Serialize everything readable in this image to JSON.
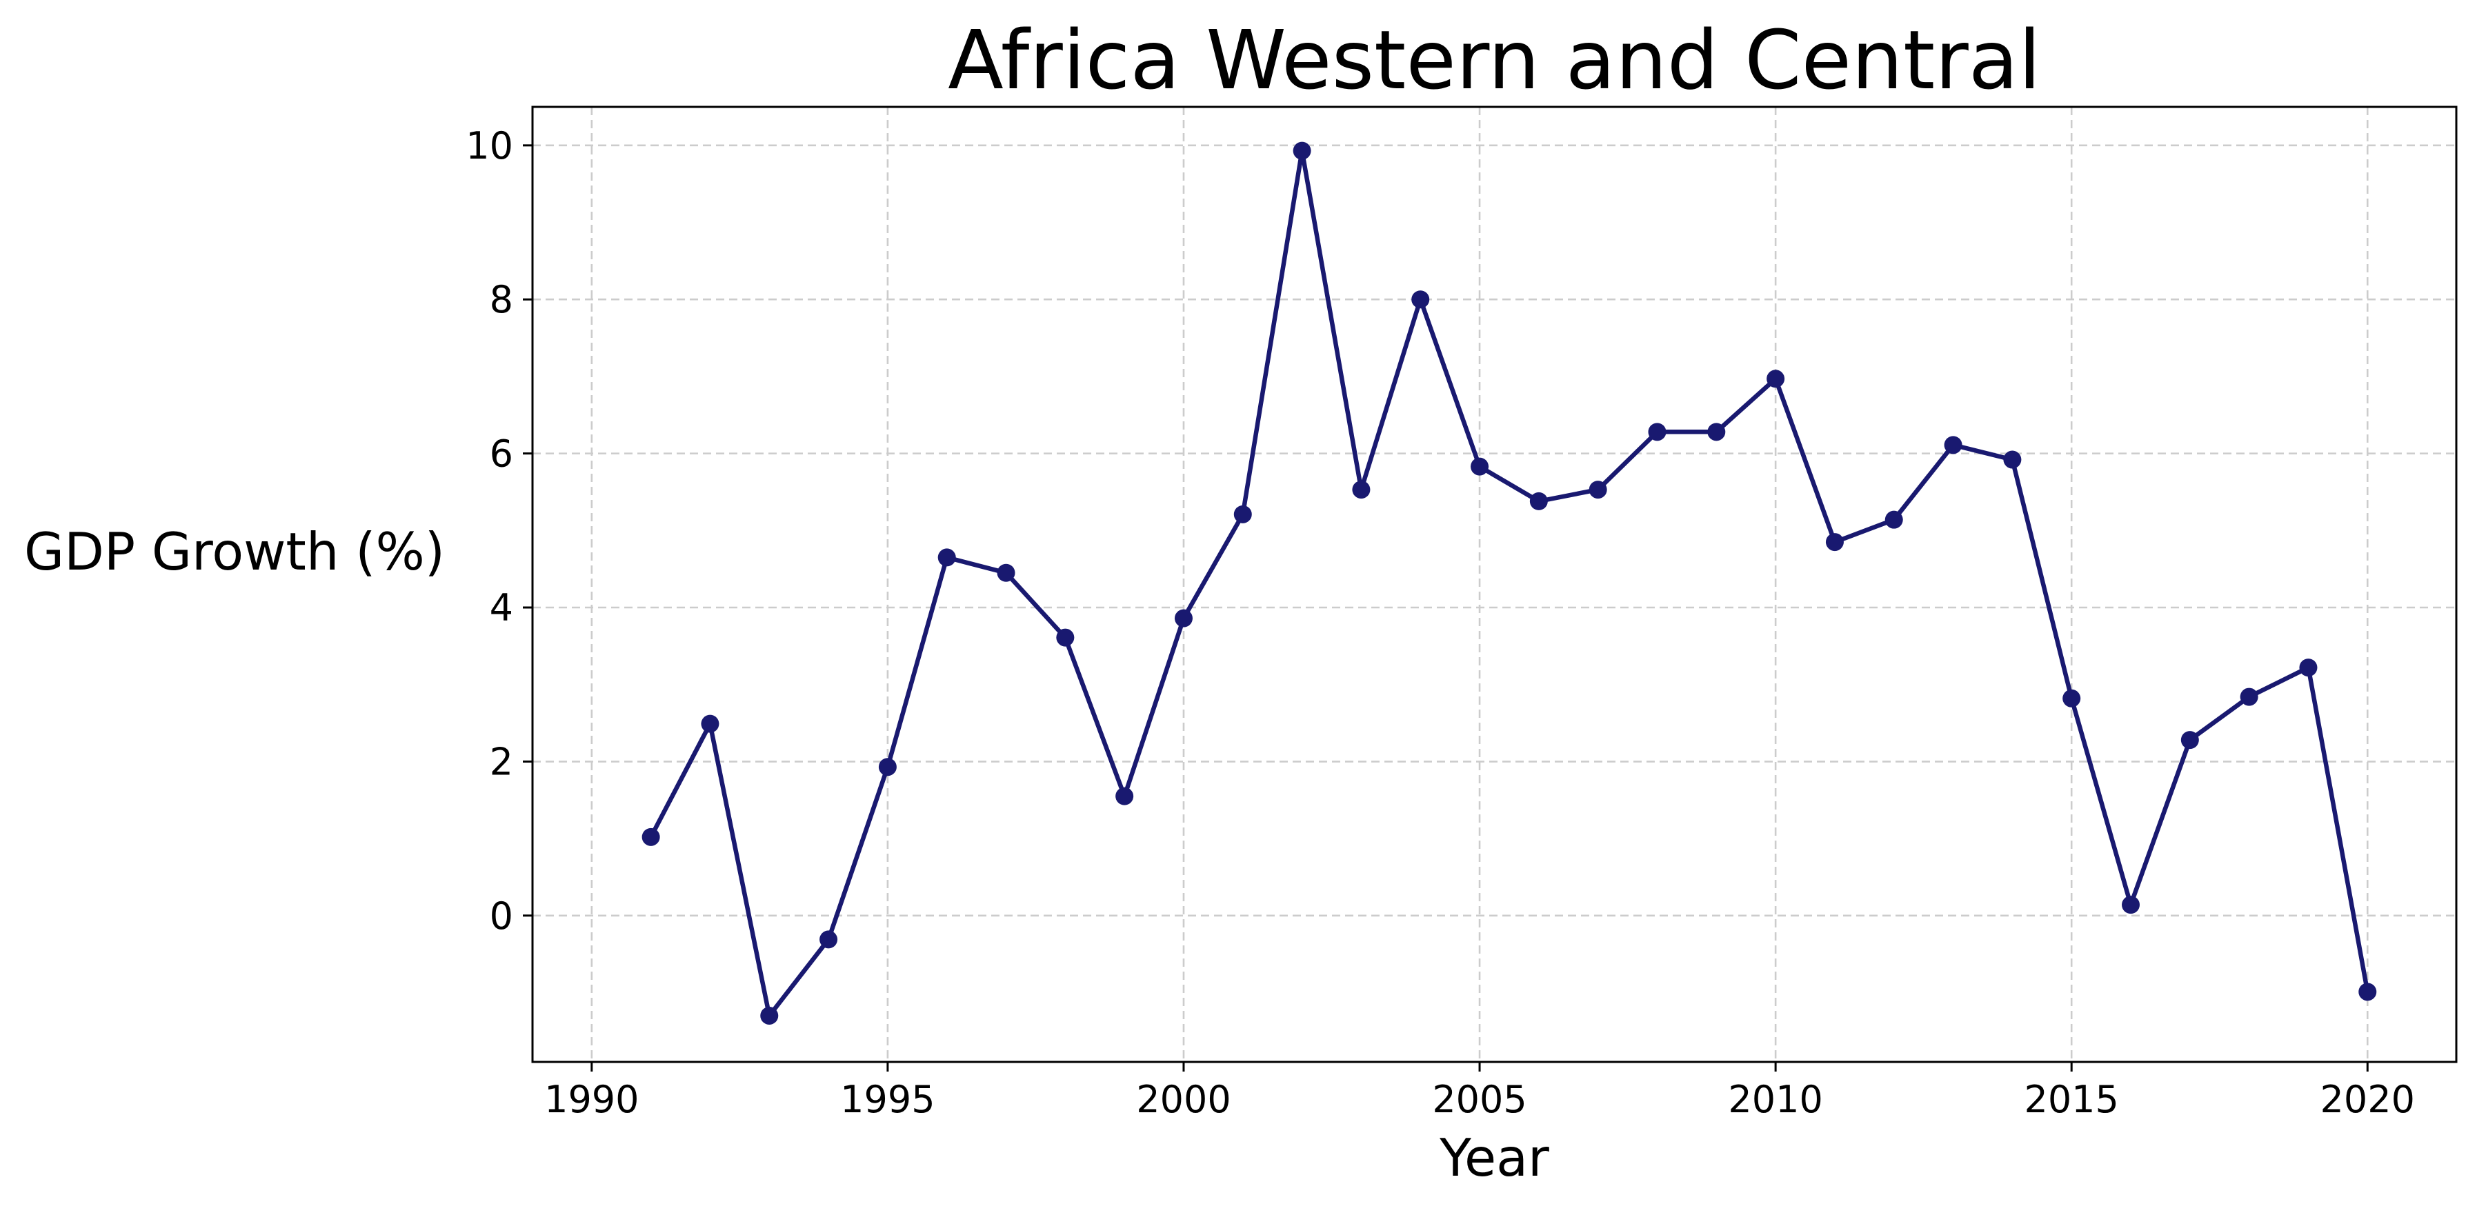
{
  "chart_data": {
    "type": "line",
    "title": "Africa Western and Central",
    "xlabel": "Year",
    "ylabel": "GDP Growth (%)",
    "xlim": [
      1989.0,
      2021.5
    ],
    "ylim": [
      -1.9,
      10.5
    ],
    "x_ticks": [
      1990,
      1995,
      2000,
      2005,
      2010,
      2015,
      2020
    ],
    "y_ticks": [
      0,
      2,
      4,
      6,
      8,
      10
    ],
    "grid": true,
    "legend": "none",
    "colors": {
      "series": "#191970",
      "grid": "#cccccc",
      "frame": "#000000"
    },
    "x": [
      1991,
      1992,
      1993,
      1994,
      1995,
      1996,
      1997,
      1998,
      1999,
      2000,
      2001,
      2002,
      2003,
      2004,
      2005,
      2006,
      2007,
      2008,
      2009,
      2010,
      2011,
      2012,
      2013,
      2014,
      2015,
      2016,
      2017,
      2018,
      2019,
      2020
    ],
    "series": [
      {
        "values": [
          1.02,
          2.49,
          -1.3,
          -0.31,
          1.93,
          4.65,
          4.45,
          3.61,
          1.55,
          3.86,
          5.21,
          9.93,
          5.53,
          8.0,
          5.83,
          5.38,
          5.53,
          6.28,
          6.28,
          6.97,
          4.85,
          5.14,
          6.11,
          5.92,
          2.82,
          0.14,
          2.28,
          2.84,
          3.22,
          -0.99
        ]
      }
    ]
  }
}
